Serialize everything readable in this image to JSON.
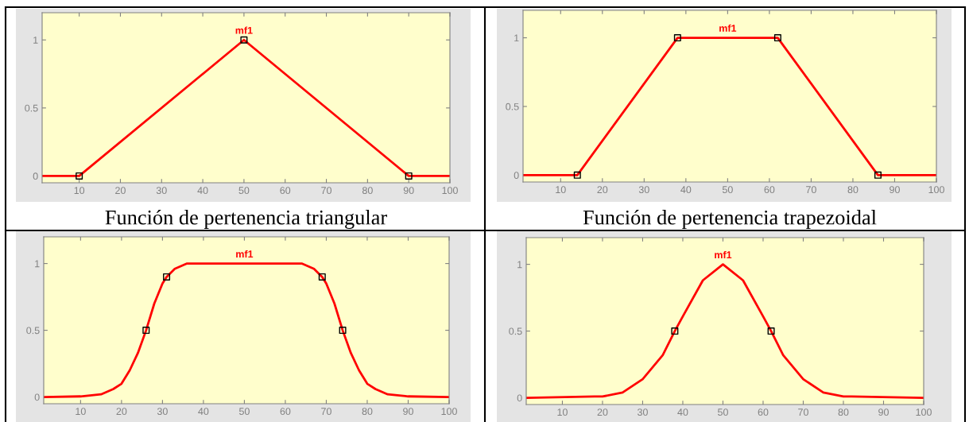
{
  "chart_data": [
    {
      "type": "line",
      "xlim": [
        1,
        100
      ],
      "xticks": [
        10,
        20,
        30,
        40,
        50,
        60,
        70,
        80,
        90,
        100
      ],
      "ylim": [
        -0.05,
        1.2
      ],
      "yticks": [
        0,
        0.5,
        1
      ],
      "grid": false,
      "annotations": [
        "Función de pertenencia triangular"
      ],
      "series": [
        {
          "name": "mf1",
          "color": "#ff0000",
          "x": [
            1,
            10,
            50,
            90,
            100
          ],
          "values": [
            0,
            0,
            1,
            0,
            0
          ]
        },
        {
          "type": "scatter",
          "color": "#000000",
          "marker": "square",
          "x": [
            10,
            50,
            90
          ],
          "values": [
            0,
            1,
            0
          ]
        }
      ]
    },
    {
      "type": "line",
      "xlim": [
        1,
        100
      ],
      "xticks": [
        10,
        20,
        30,
        40,
        50,
        60,
        70,
        80,
        90,
        100
      ],
      "ylim": [
        -0.05,
        1.2
      ],
      "yticks": [
        0,
        0.5,
        1
      ],
      "grid": false,
      "annotations": [
        "Función de pertenencia trapezoidal"
      ],
      "series": [
        {
          "name": "mf1",
          "color": "#ff0000",
          "x": [
            1,
            14,
            38,
            62,
            86,
            100
          ],
          "values": [
            0,
            0,
            1,
            1,
            0,
            0
          ]
        },
        {
          "type": "scatter",
          "color": "#000000",
          "marker": "square",
          "x": [
            14,
            38,
            62,
            86
          ],
          "values": [
            0,
            1,
            1,
            0
          ]
        }
      ]
    },
    {
      "type": "line",
      "xlim": [
        1,
        100
      ],
      "xticks": [
        10,
        20,
        30,
        40,
        50,
        60,
        70,
        80,
        90,
        100
      ],
      "ylim": [
        -0.05,
        1.2
      ],
      "yticks": [
        0,
        0.5,
        1
      ],
      "grid": false,
      "series": [
        {
          "name": "mf1",
          "color": "#ff0000",
          "x": [
            1,
            10,
            15,
            18,
            20,
            22,
            24,
            26,
            28,
            30,
            31,
            33,
            36,
            40,
            50,
            60,
            64,
            67,
            69,
            70,
            72,
            74,
            76,
            78,
            80,
            82,
            85,
            90,
            100
          ],
          "values": [
            0,
            0.005,
            0.02,
            0.06,
            0.1,
            0.2,
            0.33,
            0.5,
            0.7,
            0.85,
            0.9,
            0.96,
            1,
            1,
            1,
            1,
            1,
            0.96,
            0.9,
            0.85,
            0.7,
            0.5,
            0.33,
            0.2,
            0.1,
            0.06,
            0.02,
            0.005,
            0
          ]
        },
        {
          "type": "scatter",
          "color": "#000000",
          "marker": "square",
          "x": [
            26,
            31,
            69,
            74
          ],
          "values": [
            0.5,
            0.9,
            0.9,
            0.5
          ]
        }
      ]
    },
    {
      "type": "line",
      "xlim": [
        1,
        100
      ],
      "xticks": [
        10,
        20,
        30,
        40,
        50,
        60,
        70,
        80,
        90,
        100
      ],
      "ylim": [
        -0.05,
        1.2
      ],
      "yticks": [
        0,
        0.5,
        1
      ],
      "grid": false,
      "series": [
        {
          "name": "mf1",
          "color": "#ff0000",
          "x": [
            1,
            18,
            20,
            25,
            30,
            35,
            38,
            40,
            45,
            50,
            55,
            60,
            62,
            65,
            70,
            75,
            80,
            82,
            100
          ],
          "values": [
            0,
            0.01,
            0.01,
            0.04,
            0.14,
            0.32,
            0.5,
            0.61,
            0.88,
            1,
            0.88,
            0.61,
            0.5,
            0.32,
            0.14,
            0.04,
            0.01,
            0.01,
            0
          ]
        },
        {
          "type": "scatter",
          "color": "#000000",
          "marker": "square",
          "x": [
            38,
            62
          ],
          "values": [
            0.5,
            0.5
          ]
        }
      ]
    }
  ]
}
